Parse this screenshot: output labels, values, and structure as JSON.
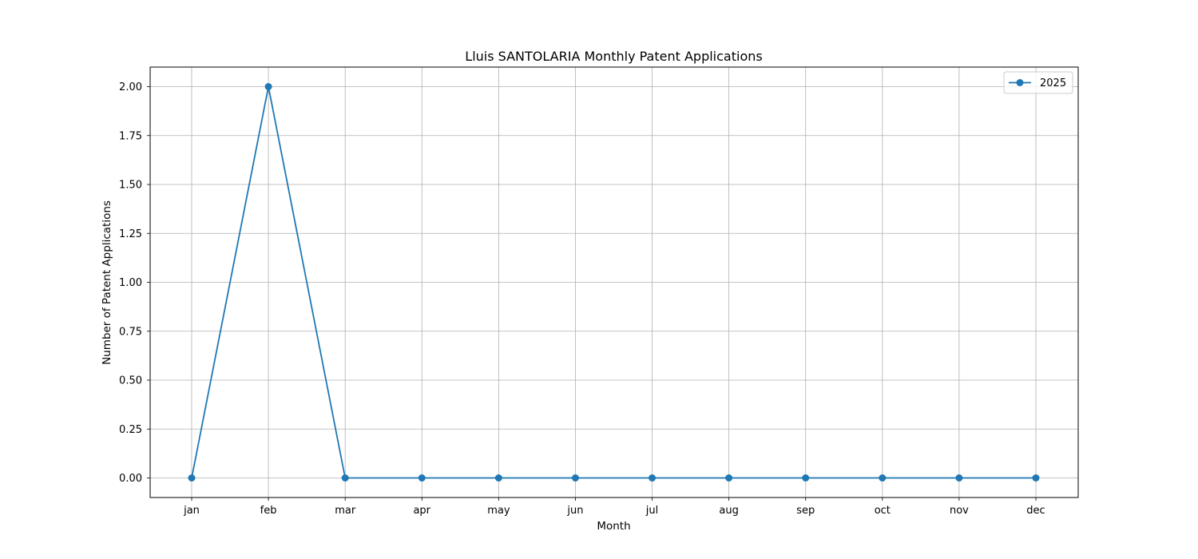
{
  "chart_data": {
    "type": "line",
    "title": "Lluis SANTOLARIA Monthly Patent Applications",
    "xlabel": "Month",
    "ylabel": "Number of Patent Applications",
    "categories": [
      "jan",
      "feb",
      "mar",
      "apr",
      "may",
      "jun",
      "jul",
      "aug",
      "sep",
      "oct",
      "nov",
      "dec"
    ],
    "series": [
      {
        "name": "2025",
        "values": [
          0,
          2,
          0,
          0,
          0,
          0,
          0,
          0,
          0,
          0,
          0,
          0
        ],
        "color": "#1f77b4",
        "marker": "circle"
      }
    ],
    "ylim": [
      -0.1,
      2.1
    ],
    "yticks": [
      0.0,
      0.25,
      0.5,
      0.75,
      1.0,
      1.25,
      1.5,
      1.75,
      2.0
    ],
    "ytick_labels": [
      "0.00",
      "0.25",
      "0.50",
      "0.75",
      "1.00",
      "1.25",
      "1.50",
      "1.75",
      "2.00"
    ],
    "grid": true,
    "legend_position": "top-right",
    "grid_color": "#b0b0b0"
  }
}
